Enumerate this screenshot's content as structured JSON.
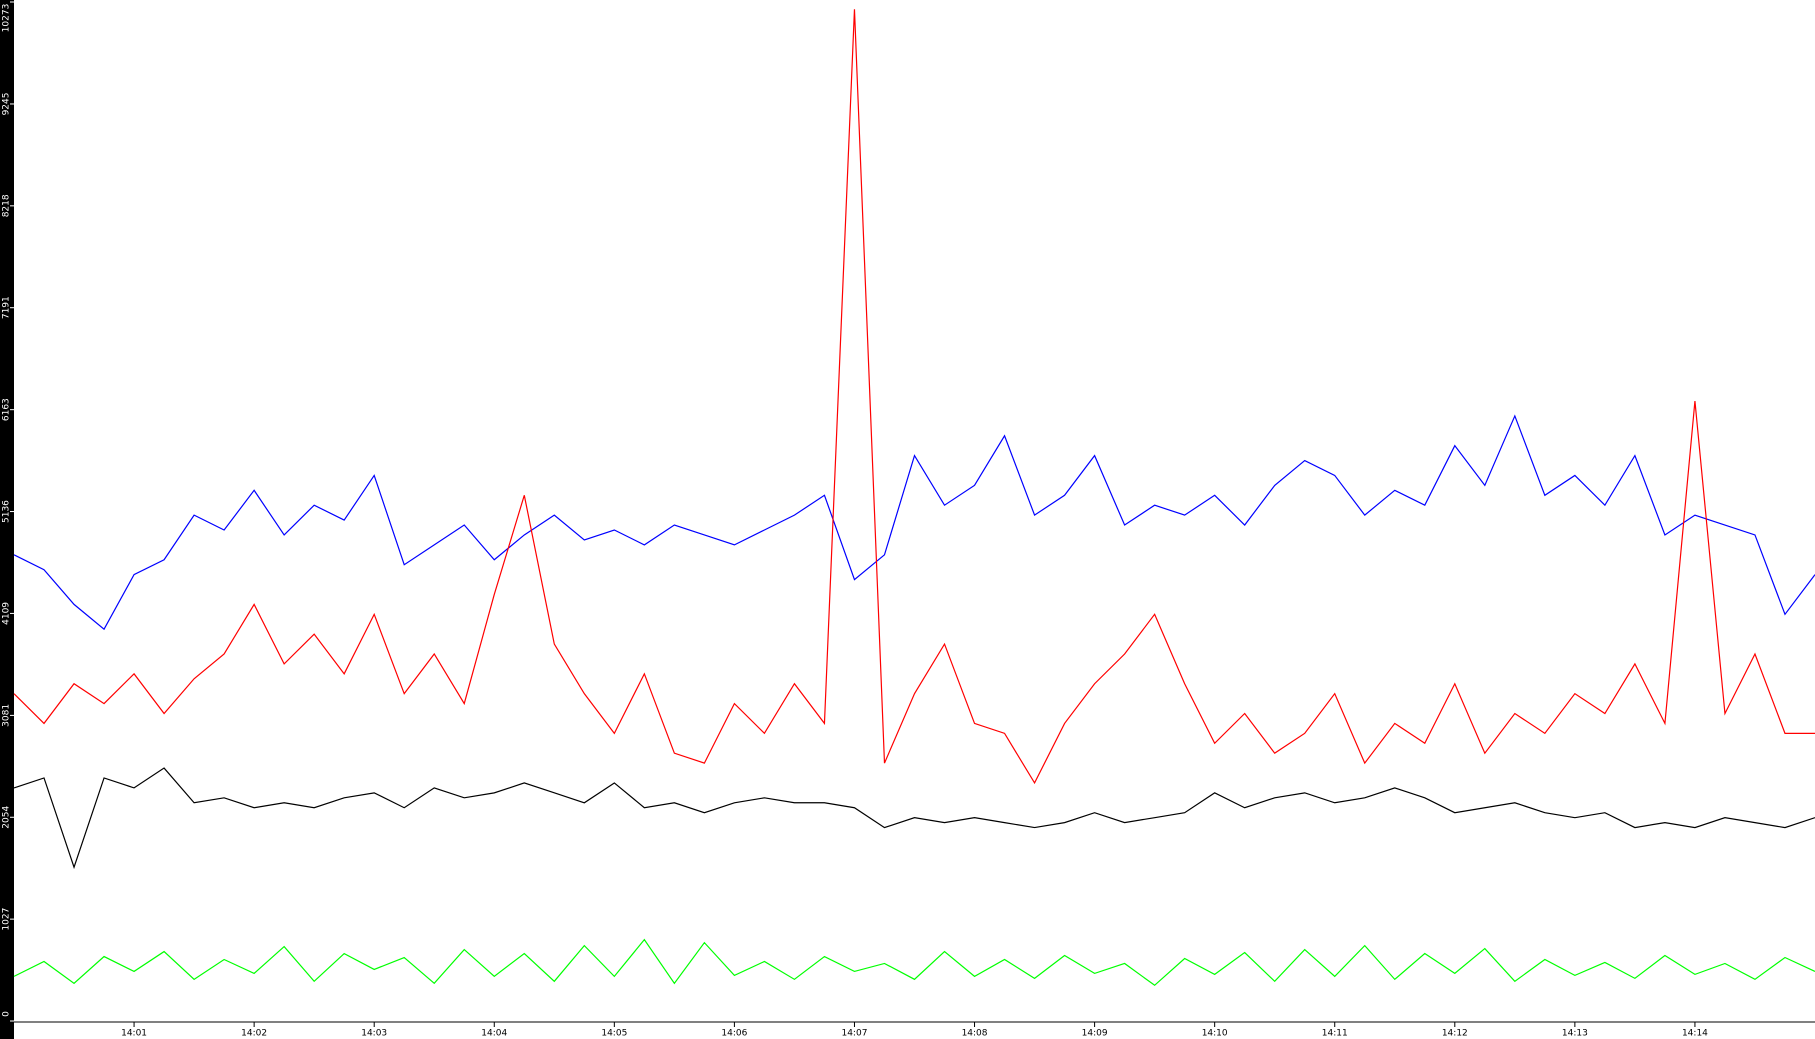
{
  "chart_data": {
    "type": "line",
    "x": [
      0,
      0.25,
      0.5,
      0.75,
      1,
      1.25,
      1.5,
      1.75,
      2,
      2.25,
      2.5,
      2.75,
      3,
      3.25,
      3.5,
      3.75,
      4,
      4.25,
      4.5,
      4.75,
      5,
      5.25,
      5.5,
      5.75,
      6,
      6.25,
      6.5,
      6.75,
      7,
      7.25,
      7.5,
      7.75,
      8,
      8.25,
      8.5,
      8.75,
      9,
      9.25,
      9.5,
      9.75,
      10,
      10.25,
      10.5,
      10.75,
      11,
      11.25,
      11.5,
      11.75,
      12,
      12.25,
      12.5,
      12.75,
      13,
      13.25,
      13.5,
      13.75,
      14,
      14.25,
      14.5,
      14.75,
      15
    ],
    "series": [
      {
        "color": "#0000ff",
        "values": [
          4700,
          4550,
          4200,
          3950,
          4500,
          4650,
          5100,
          4950,
          5350,
          4900,
          5200,
          5050,
          5500,
          4600,
          4800,
          5000,
          4650,
          4900,
          5100,
          4850,
          4950,
          4800,
          5000,
          4900,
          4800,
          4950,
          5100,
          5300,
          4450,
          4700,
          5700,
          5200,
          5400,
          5900,
          5100,
          5300,
          5700,
          5000,
          5200,
          5100,
          5300,
          5000,
          5400,
          5650,
          5500,
          5100,
          5350,
          5200,
          5800,
          5400,
          6100,
          5300,
          5500,
          5200,
          5700,
          4900,
          5100,
          5000,
          4900,
          4100,
          4500
        ]
      },
      {
        "color": "#ff0000",
        "values": [
          3300,
          3000,
          3400,
          3200,
          3500,
          3100,
          3450,
          3700,
          4200,
          3600,
          3900,
          3500,
          4100,
          3300,
          3700,
          3200,
          4300,
          5300,
          3800,
          3300,
          2900,
          3500,
          2700,
          2600,
          3200,
          2900,
          3400,
          3000,
          10200,
          2600,
          3300,
          3800,
          3000,
          2900,
          2400,
          3000,
          3400,
          3700,
          4100,
          3400,
          2800,
          3100,
          2700,
          2900,
          3300,
          2600,
          3000,
          2800,
          3400,
          2700,
          3100,
          2900,
          3300,
          3100,
          3600,
          3000,
          6250,
          3100,
          3700,
          2900,
          2900
        ]
      },
      {
        "color": "#000000",
        "values": [
          2350,
          2450,
          1550,
          2450,
          2350,
          2550,
          2200,
          2250,
          2150,
          2200,
          2150,
          2250,
          2300,
          2150,
          2350,
          2250,
          2300,
          2400,
          2300,
          2200,
          2400,
          2150,
          2200,
          2100,
          2200,
          2250,
          2200,
          2200,
          2150,
          1950,
          2050,
          2000,
          2050,
          2000,
          1950,
          2000,
          2100,
          2000,
          2050,
          2100,
          2300,
          2150,
          2250,
          2300,
          2200,
          2250,
          2350,
          2250,
          2100,
          2150,
          2200,
          2100,
          2050,
          2100,
          1950,
          2000,
          1950,
          2050,
          2000,
          1950,
          2050
        ]
      },
      {
        "color": "#00ff00",
        "values": [
          450,
          600,
          380,
          650,
          500,
          700,
          420,
          620,
          480,
          750,
          400,
          680,
          520,
          640,
          380,
          720,
          450,
          680,
          400,
          760,
          450,
          820,
          380,
          790,
          460,
          600,
          420,
          650,
          500,
          580,
          420,
          700,
          450,
          620,
          430,
          660,
          480,
          580,
          360,
          630,
          470,
          690,
          400,
          720,
          450,
          760,
          420,
          680,
          480,
          730,
          400,
          620,
          460,
          590,
          430,
          660,
          470,
          580,
          420,
          640,
          500
        ]
      }
    ],
    "xlim": [
      0,
      15
    ],
    "xticks": [
      {
        "value": 1,
        "label": "14:01"
      },
      {
        "value": 2,
        "label": "14:02"
      },
      {
        "value": 3,
        "label": "14:03"
      },
      {
        "value": 4,
        "label": "14:04"
      },
      {
        "value": 5,
        "label": "14:05"
      },
      {
        "value": 6,
        "label": "14:06"
      },
      {
        "value": 7,
        "label": "14:07"
      },
      {
        "value": 8,
        "label": "14:08"
      },
      {
        "value": 9,
        "label": "14:09"
      },
      {
        "value": 10,
        "label": "14:10"
      },
      {
        "value": 11,
        "label": "14:11"
      },
      {
        "value": 12,
        "label": "14:12"
      },
      {
        "value": 13,
        "label": "14:13"
      },
      {
        "value": 14,
        "label": "14:14"
      }
    ],
    "ylim": [
      0,
      10273
    ],
    "yticks": [
      0,
      1027,
      2054,
      3081,
      4109,
      5136,
      6163,
      7191,
      8218,
      9245,
      10273
    ]
  }
}
